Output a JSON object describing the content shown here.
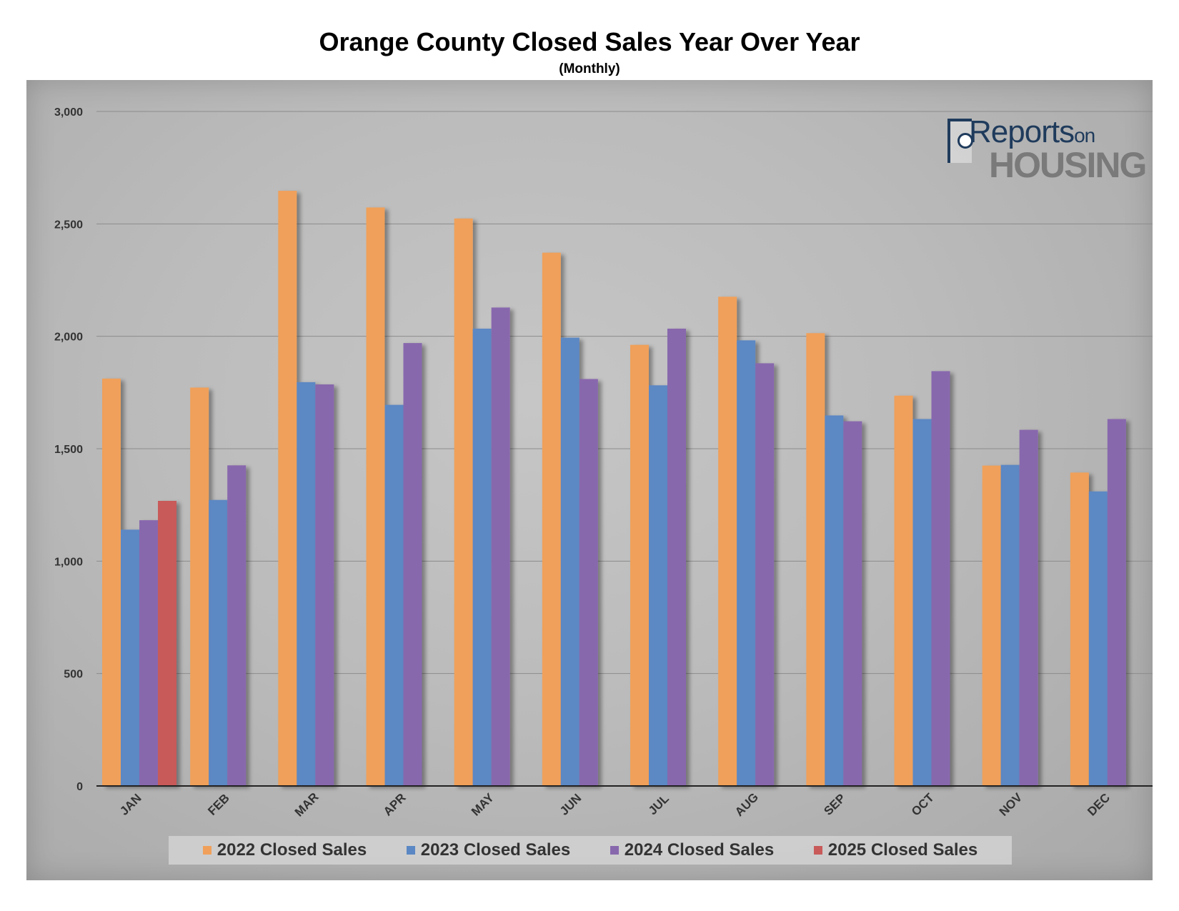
{
  "chart_data": {
    "type": "bar",
    "title": "Orange County Closed Sales Year Over Year",
    "subtitle": "(Monthly)",
    "xlabel": "",
    "ylabel": "",
    "ylim": [
      0,
      3000
    ],
    "yticks": [
      "0",
      "500",
      "1,000",
      "1,500",
      "2,000",
      "2,500",
      "3,000"
    ],
    "ytick_values": [
      0,
      500,
      1000,
      1500,
      2000,
      2500,
      3000
    ],
    "grid": true,
    "legend_position": "bottom",
    "categories": [
      "JAN",
      "FEB",
      "MAR",
      "APR",
      "MAY",
      "JUN",
      "JUL",
      "AUG",
      "SEP",
      "OCT",
      "NOV",
      "DEC"
    ],
    "series": [
      {
        "name": "2022 Closed Sales",
        "color": "#f0a05a",
        "values": [
          1812,
          1772,
          2647,
          2573,
          2524,
          2372,
          1962,
          2176,
          2014,
          1736,
          1425,
          1394
        ]
      },
      {
        "name": "2023 Closed Sales",
        "color": "#5b88c4",
        "values": [
          1140,
          1272,
          1796,
          1695,
          2034,
          1994,
          1782,
          1982,
          1648,
          1632,
          1428,
          1310
        ]
      },
      {
        "name": "2024 Closed Sales",
        "color": "#8868ad",
        "values": [
          1182,
          1426,
          1786,
          1970,
          2128,
          1810,
          2034,
          1880,
          1622,
          1845,
          1584,
          1632
        ]
      },
      {
        "name": "2025 Closed Sales",
        "color": "#c85a5a",
        "values": [
          1268,
          null,
          null,
          null,
          null,
          null,
          null,
          null,
          null,
          null,
          null,
          null
        ]
      }
    ]
  },
  "logo": {
    "line1": "Reports",
    "line1_suffix": "on",
    "line2": "HOUSING"
  }
}
